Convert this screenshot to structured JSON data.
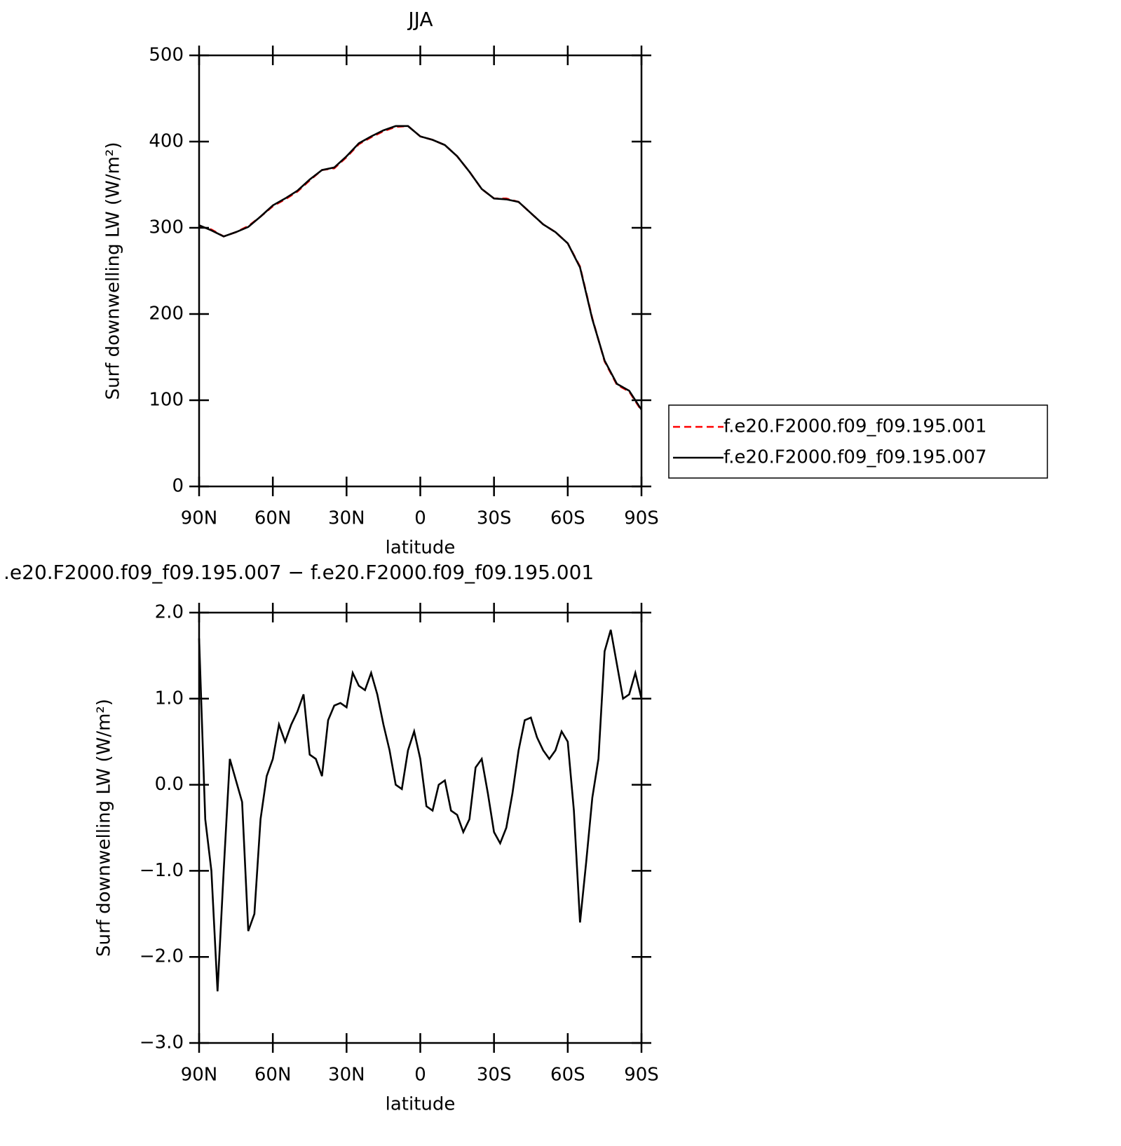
{
  "chart_data": [
    {
      "type": "line",
      "title": "JJA",
      "x_label": "latitude",
      "y_label": "Surf downwelling LW (W/m²)",
      "x": [
        90,
        85,
        80,
        75,
        70,
        65,
        60,
        55,
        50,
        45,
        40,
        35,
        30,
        25,
        20,
        15,
        10,
        5,
        0,
        -5,
        -10,
        -15,
        -20,
        -25,
        -30,
        -35,
        -40,
        -45,
        -50,
        -55,
        -60,
        -65,
        -70,
        -75,
        -80,
        -85,
        -90
      ],
      "series": [
        {
          "name": "f.e20.F2000.f09_f09.195.001",
          "color": "#ff0000",
          "dash": true,
          "values": [
            302,
            298,
            290,
            295,
            302,
            313,
            325,
            333,
            342,
            355,
            367,
            369,
            382,
            397,
            405,
            412,
            417,
            418,
            406,
            402,
            396,
            383,
            365,
            345,
            334,
            334,
            330,
            317,
            304,
            295,
            282,
            255,
            195,
            145,
            118,
            110,
            88
          ]
        },
        {
          "name": "f.e20.F2000.f09_f09.195.007",
          "color": "#000000",
          "dash": false,
          "values": [
            303,
            297,
            290,
            295,
            301,
            313,
            326,
            334,
            343,
            356,
            367,
            370,
            383,
            398,
            406,
            413,
            418,
            418,
            406,
            402,
            396,
            383,
            365,
            345,
            334,
            333,
            330,
            317,
            304,
            295,
            282,
            254,
            194,
            146,
            119,
            111,
            89
          ]
        }
      ],
      "xlim": [
        90,
        -90
      ],
      "xticks": [
        {
          "value": 90,
          "label": "90N"
        },
        {
          "value": 60,
          "label": "60N"
        },
        {
          "value": 30,
          "label": "30N"
        },
        0,
        {
          "value": -30,
          "label": "30S"
        },
        {
          "value": -60,
          "label": "60S"
        },
        {
          "value": -90,
          "label": "90S"
        }
      ],
      "ylim": [
        0,
        500
      ],
      "yticks": [
        0,
        100,
        200,
        300,
        400,
        500
      ],
      "legend": "right"
    },
    {
      "type": "line",
      "title": ".e20.F2000.f09_f09.195.007 − f.e20.F2000.f09_f09.195.001",
      "x_label": "latitude",
      "y_label": "Surf downwelling LW (W/m²)",
      "x": [
        90,
        87.5,
        85,
        82.5,
        80,
        77.5,
        75,
        72.5,
        70,
        67.5,
        65,
        62.5,
        60,
        57.5,
        55,
        52.5,
        50,
        47.5,
        45,
        42.5,
        40,
        37.5,
        35,
        32.5,
        30,
        27.5,
        25,
        22.5,
        20,
        17.5,
        15,
        12.5,
        10,
        7.5,
        5,
        2.5,
        0,
        -2.5,
        -5,
        -7.5,
        -10,
        -12.5,
        -15,
        -17.5,
        -20,
        -22.5,
        -25,
        -27.5,
        -30,
        -32.5,
        -35,
        -37.5,
        -40,
        -42.5,
        -45,
        -47.5,
        -50,
        -52.5,
        -55,
        -57.5,
        -60,
        -62.5,
        -65,
        -67.5,
        -70,
        -72.5,
        -75,
        -77.5,
        -80,
        -82.5,
        -85,
        -87.5,
        -90
      ],
      "series": [
        {
          "name": null,
          "color": "#000000",
          "dash": false,
          "values": [
            1.7,
            -0.4,
            -1.0,
            -2.4,
            -1.0,
            0.3,
            0.05,
            -0.2,
            -1.7,
            -1.5,
            -0.4,
            0.1,
            0.3,
            0.7,
            0.5,
            0.7,
            0.85,
            1.05,
            0.35,
            0.3,
            0.1,
            0.75,
            0.92,
            0.95,
            0.9,
            1.3,
            1.15,
            1.1,
            1.3,
            1.05,
            0.7,
            0.4,
            0.0,
            -0.05,
            0.4,
            0.62,
            0.3,
            -0.25,
            -0.3,
            0.0,
            0.05,
            -0.3,
            -0.35,
            -0.55,
            -0.4,
            0.2,
            0.3,
            -0.1,
            -0.55,
            -0.68,
            -0.5,
            -0.1,
            0.4,
            0.75,
            0.78,
            0.55,
            0.4,
            0.3,
            0.4,
            0.62,
            0.5,
            -0.3,
            -1.6,
            -0.9,
            -0.15,
            0.3,
            1.55,
            1.8,
            1.4,
            1.0,
            1.05,
            1.3,
            1.0
          ]
        }
      ],
      "xlim": [
        90,
        -90
      ],
      "xticks": [
        {
          "value": 90,
          "label": "90N"
        },
        {
          "value": 60,
          "label": "60N"
        },
        {
          "value": 30,
          "label": "30N"
        },
        0,
        {
          "value": -30,
          "label": "30S"
        },
        {
          "value": -60,
          "label": "60S"
        },
        {
          "value": -90,
          "label": "90S"
        }
      ],
      "ylim": [
        -3,
        2
      ],
      "yticks": [
        {
          "value": -3,
          "label": "−3.0"
        },
        {
          "value": -2,
          "label": "−2.0"
        },
        {
          "value": -1,
          "label": "−1.0"
        },
        {
          "value": 0,
          "label": "0.0"
        },
        {
          "value": 1,
          "label": "1.0"
        },
        {
          "value": 2,
          "label": "2.0"
        }
      ]
    }
  ]
}
